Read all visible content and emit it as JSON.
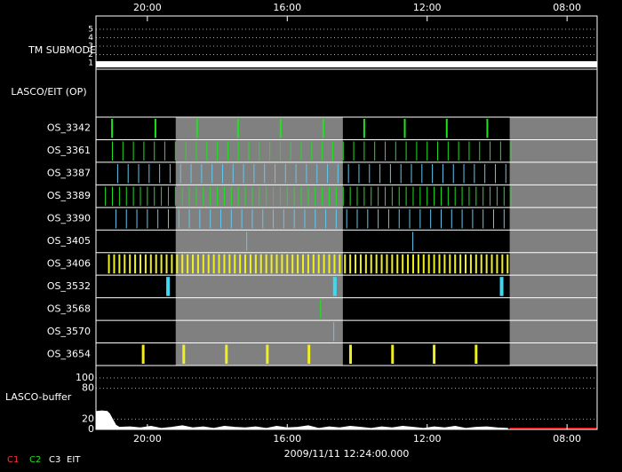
{
  "chart_data": {
    "type": "timeline",
    "xlim": [
      21.47,
      7.14
    ],
    "xticks": [
      {
        "value": 20,
        "label": "20:00"
      },
      {
        "value": 16,
        "label": "16:00"
      },
      {
        "value": 12,
        "label": "12:00"
      },
      {
        "value": 8,
        "label": "08:00"
      }
    ],
    "timestamp": "2009/11/11 12:24:00.000",
    "shaded": [
      [
        19.19,
        14.41
      ],
      [
        9.64,
        7.14
      ]
    ],
    "shade_color": "#808080",
    "submode": {
      "label": "TM SUBMODE",
      "ylim": [
        1,
        5
      ],
      "yticks": [
        1,
        2,
        3,
        4,
        5
      ],
      "x": [
        21.47,
        7.14
      ],
      "values": [
        1,
        1
      ],
      "color": "#ffffff"
    },
    "op_label": "LASCO/EIT (OP)",
    "rows": [
      {
        "name": "OS_3342",
        "color": "#20e020",
        "x": [
          21.01,
          19.77,
          18.58,
          17.41,
          16.19,
          14.97,
          13.8,
          12.64,
          11.44,
          10.28
        ]
      },
      {
        "name": "OS_3361",
        "color": "#20e020",
        "x": [
          21.0,
          20.7,
          20.4,
          20.1,
          19.8,
          19.5,
          19.2,
          18.9,
          18.6,
          18.3,
          18.0,
          17.7,
          17.4,
          17.1,
          16.8,
          16.5,
          16.2,
          15.9,
          15.6,
          15.3,
          15.0,
          14.7,
          14.4,
          14.1,
          13.8,
          13.5,
          13.2,
          12.9,
          12.6,
          12.3,
          12.0,
          11.7,
          11.4,
          11.1,
          10.8,
          10.5,
          10.2,
          9.9,
          9.6
        ]
      },
      {
        "name": "OS_3387",
        "color": "#60c8f0",
        "x": [
          20.85,
          20.55,
          20.25,
          19.95,
          19.65,
          19.35,
          19.05,
          18.75,
          18.45,
          18.15,
          17.85,
          17.55,
          17.25,
          16.95,
          16.65,
          16.35,
          16.05,
          15.75,
          15.45,
          15.15,
          14.85,
          14.55,
          14.25,
          13.95,
          13.65,
          13.35,
          13.05,
          12.75,
          12.45,
          12.15,
          11.85,
          11.55,
          11.25,
          10.95,
          10.65,
          10.35,
          10.05,
          9.75
        ]
      },
      {
        "name": "OS_3389",
        "color": "#20e020",
        "x": [
          21.2,
          21.0,
          20.8,
          20.6,
          20.4,
          20.2,
          20.0,
          19.8,
          19.6,
          19.4,
          19.2,
          19.0,
          18.8,
          18.6,
          18.4,
          18.2,
          18.0,
          17.8,
          17.6,
          17.4,
          17.2,
          17.0,
          16.8,
          16.6,
          16.4,
          16.2,
          16.0,
          15.8,
          15.6,
          15.4,
          15.2,
          15.0,
          14.8,
          14.6,
          14.4,
          14.2,
          14.0,
          13.8,
          13.6,
          13.4,
          13.2,
          13.0,
          12.8,
          12.6,
          12.4,
          12.2,
          12.0,
          11.8,
          11.6,
          11.4,
          11.2,
          11.0,
          10.8,
          10.6,
          10.4,
          10.2,
          10.0,
          9.8,
          9.6
        ]
      },
      {
        "name": "OS_3390",
        "color": "#60c8f0",
        "x": [
          20.9,
          20.6,
          20.3,
          20.0,
          19.7,
          19.4,
          19.1,
          18.8,
          18.5,
          18.2,
          17.9,
          17.6,
          17.3,
          17.0,
          16.7,
          16.4,
          16.1,
          15.8,
          15.5,
          15.2,
          14.9,
          14.6,
          14.3,
          14.0,
          13.7,
          13.4,
          13.1,
          12.8,
          12.5,
          12.2,
          11.9,
          11.6,
          11.3,
          11.0,
          10.7,
          10.4,
          10.1,
          9.8
        ]
      },
      {
        "name": "OS_3405",
        "color": "#60c8f0",
        "x": [
          17.16,
          12.41
        ]
      },
      {
        "name": "OS_3406",
        "color": "#f0f020",
        "x": [
          21.1,
          20.95,
          20.8,
          20.65,
          20.5,
          20.35,
          20.2,
          20.05,
          19.9,
          19.75,
          19.6,
          19.45,
          19.3,
          19.15,
          19.0,
          18.85,
          18.7,
          18.55,
          18.4,
          18.25,
          18.1,
          17.95,
          17.8,
          17.65,
          17.5,
          17.35,
          17.2,
          17.05,
          16.9,
          16.75,
          16.6,
          16.45,
          16.3,
          16.15,
          16.0,
          15.85,
          15.7,
          15.55,
          15.4,
          15.25,
          15.1,
          14.95,
          14.8,
          14.65,
          14.5,
          14.35,
          14.2,
          14.05,
          13.9,
          13.75,
          13.6,
          13.45,
          13.3,
          13.15,
          13.0,
          12.85,
          12.7,
          12.55,
          12.4,
          12.25,
          12.1,
          11.95,
          11.8,
          11.65,
          11.5,
          11.35,
          11.2,
          11.05,
          10.9,
          10.75,
          10.6,
          10.45,
          10.3,
          10.15,
          10.0,
          9.85,
          9.7
        ]
      },
      {
        "name": "OS_3532",
        "color": "#40d8f0",
        "x": [
          19.41,
          14.64,
          9.87
        ]
      },
      {
        "name": "OS_3568",
        "color": "#20e020",
        "x": [
          15.05
        ]
      },
      {
        "name": "OS_3570",
        "color": "#60c8f0",
        "x": [
          14.67
        ]
      },
      {
        "name": "OS_3654",
        "color": "#f0f020",
        "x": [
          20.12,
          18.96,
          17.74,
          16.57,
          15.38,
          14.19,
          12.99,
          11.8,
          10.6
        ]
      }
    ],
    "buffer": {
      "label": "LASCO-buffer",
      "ylim": [
        0,
        100
      ],
      "yticks": [
        0,
        20,
        80,
        100
      ],
      "color": "#ffffff",
      "x": [
        21.45,
        21.3,
        21.15,
        21.08,
        21.0,
        20.9,
        20.8,
        20.5,
        20.2,
        19.9,
        19.6,
        19.3,
        19.0,
        18.7,
        18.4,
        18.1,
        17.8,
        17.5,
        17.2,
        16.9,
        16.6,
        16.3,
        16.0,
        15.7,
        15.4,
        15.1,
        14.8,
        14.5,
        14.2,
        13.9,
        13.6,
        13.3,
        13.0,
        12.7,
        12.4,
        12.1,
        11.8,
        11.5,
        11.2,
        10.9,
        10.6,
        10.3,
        10.0,
        9.7
      ],
      "values": [
        35,
        36,
        35,
        30,
        20,
        8,
        4,
        5,
        3,
        6,
        2,
        4,
        7,
        3,
        5,
        2,
        6,
        4,
        3,
        5,
        2,
        6,
        3,
        4,
        7,
        2,
        5,
        3,
        6,
        4,
        2,
        5,
        3,
        6,
        4,
        2,
        5,
        3,
        6,
        2,
        4,
        5,
        3,
        2
      ],
      "missing": {
        "color": "#e00000",
        "x": [
          9.64,
          7.14
        ]
      }
    },
    "legend": [
      {
        "name": "C1",
        "color": "#ff3030"
      },
      {
        "name": "C2",
        "color": "#20e020"
      },
      {
        "name": "C3",
        "color": "#ffffff"
      },
      {
        "name": "EIT",
        "color": "#ffffff"
      }
    ]
  }
}
